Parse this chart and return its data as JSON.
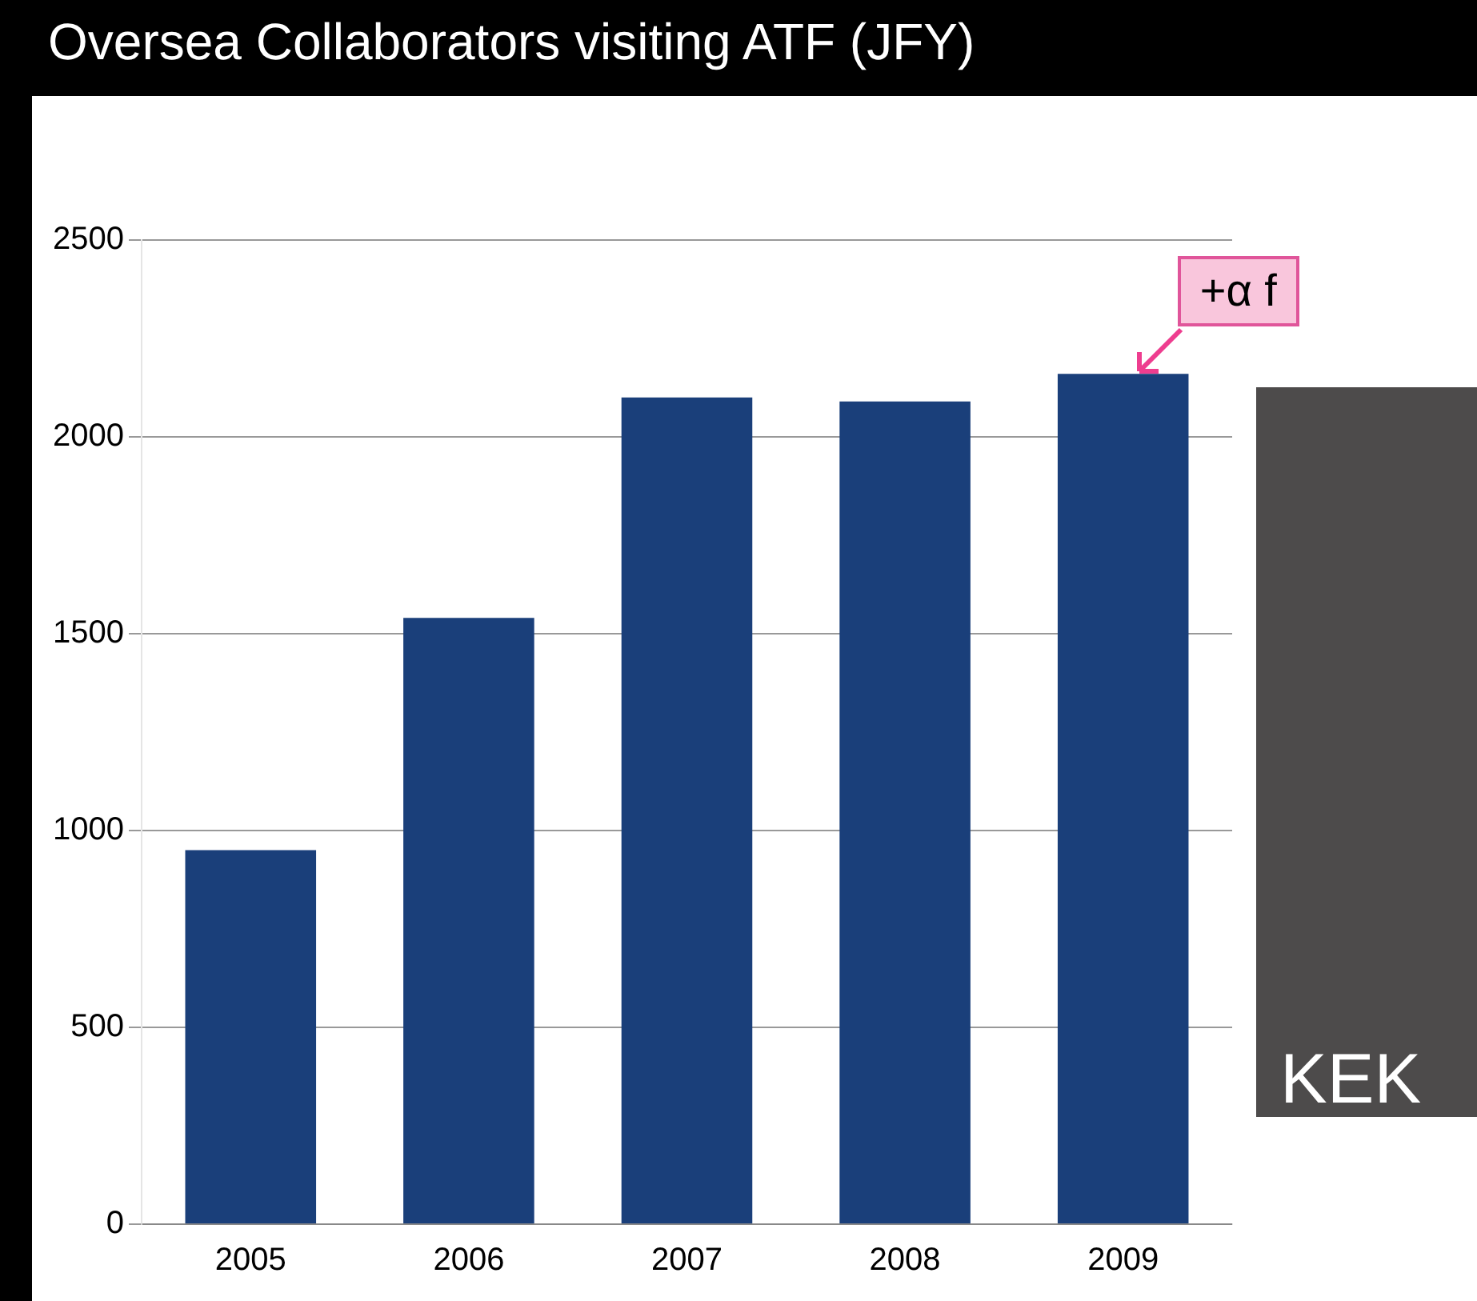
{
  "chart_data": {
    "type": "bar",
    "title": "Oversea Collaborators visiting ATF (JFY)",
    "categories": [
      "2005",
      "2006",
      "2007",
      "2008",
      "2009"
    ],
    "values": [
      950,
      1540,
      2100,
      2090,
      2160
    ],
    "color": "#1a3f7a",
    "ylim": [
      0,
      2500
    ],
    "yticks": [
      0,
      500,
      1000,
      1500,
      2000,
      2500
    ],
    "grid": "y",
    "annotations": [
      {
        "text": "+α f",
        "x": "2009",
        "y": 2160
      },
      "KEK"
    ]
  }
}
